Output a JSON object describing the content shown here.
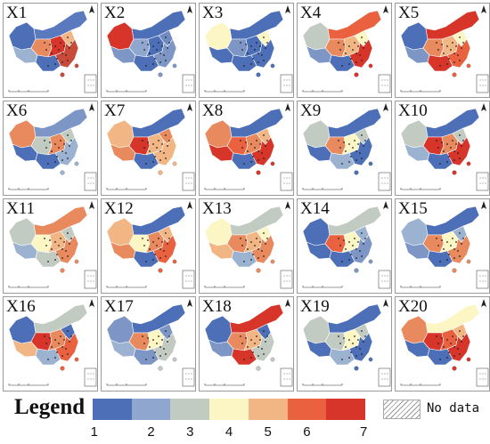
{
  "panels": [
    {
      "label": "X1",
      "colors": [
        "#4c6fb8",
        "#9bb2d1",
        "#5a79be",
        "#e88a5e",
        "#d8352a",
        "#f2b685",
        "#c74a3a",
        "#4c6fb8"
      ]
    },
    {
      "label": "X2",
      "colors": [
        "#d8352a",
        "#7d96c6",
        "#4c6fb8",
        "#8fa7cf",
        "#4c6fb8",
        "#6f8bc2",
        "#7d96c6",
        "#4c6fb8"
      ]
    },
    {
      "label": "X3",
      "colors": [
        "#fbf6c4",
        "#4c6fb8",
        "#4c6fb8",
        "#7d96c6",
        "#4c6fb8",
        "#fbf6c4",
        "#4c6fb8",
        "#4c6fb8"
      ]
    },
    {
      "label": "X4",
      "colors": [
        "#c2cbc2",
        "#7d96c6",
        "#e9613f",
        "#e88a5e",
        "#f2b685",
        "#fbf6c4",
        "#d8352a",
        "#4c6fb8"
      ]
    },
    {
      "label": "X5",
      "colors": [
        "#4c6fb8",
        "#7d96c6",
        "#d8352a",
        "#e88a5e",
        "#f2b685",
        "#fbf6c4",
        "#e9613f",
        "#d8352a"
      ]
    },
    {
      "label": "X6",
      "colors": [
        "#e88a5e",
        "#4c6fb8",
        "#7d96c6",
        "#c2cbc2",
        "#e88a5e",
        "#c2cbc2",
        "#9bb2d1",
        "#4c6fb8"
      ]
    },
    {
      "label": "X7",
      "colors": [
        "#f2b685",
        "#e88a5e",
        "#4c6fb8",
        "#d8352a",
        "#f2b685",
        "#e88a5e",
        "#f2b685",
        "#4c6fb8"
      ]
    },
    {
      "label": "X8",
      "colors": [
        "#e88a5e",
        "#d8352a",
        "#4c6fb8",
        "#e9613f",
        "#e88a5e",
        "#f2b685",
        "#d8352a",
        "#4c6fb8"
      ]
    },
    {
      "label": "X9",
      "colors": [
        "#c2cbc2",
        "#4c6fb8",
        "#4c6fb8",
        "#e88a5e",
        "#fbf6c4",
        "#c2cbc2",
        "#4c6fb8",
        "#9bb2d1"
      ]
    },
    {
      "label": "X10",
      "colors": [
        "#c2cbc2",
        "#9bb2d1",
        "#4c6fb8",
        "#d8352a",
        "#e88a5e",
        "#c2cbc2",
        "#d8352a",
        "#4c6fb8"
      ]
    },
    {
      "label": "X11",
      "colors": [
        "#c2cbc2",
        "#9bb2d1",
        "#e88a5e",
        "#fbf6c4",
        "#f2b685",
        "#c2cbc2",
        "#e88a5e",
        "#c2cbc2"
      ]
    },
    {
      "label": "X12",
      "colors": [
        "#f2b685",
        "#e88a5e",
        "#4c6fb8",
        "#fbf6c4",
        "#e88a5e",
        "#f2b685",
        "#e9613f",
        "#4c6fb8"
      ]
    },
    {
      "label": "X13",
      "colors": [
        "#fbf6c4",
        "#f2b685",
        "#c2cbc2",
        "#e88a5e",
        "#f2b685",
        "#fbf6c4",
        "#e88a5e",
        "#9bb2d1"
      ]
    },
    {
      "label": "X14",
      "colors": [
        "#4c6fb8",
        "#4c6fb8",
        "#c2cbc2",
        "#e9613f",
        "#fbf6c4",
        "#9bb2d1",
        "#7d96c6",
        "#4c6fb8"
      ]
    },
    {
      "label": "X15",
      "colors": [
        "#9bb2d1",
        "#7d96c6",
        "#4c6fb8",
        "#e88a5e",
        "#fbf6c4",
        "#9bb2d1",
        "#e88a5e",
        "#4c6fb8"
      ]
    },
    {
      "label": "X16",
      "colors": [
        "#4c6fb8",
        "#f2b685",
        "#c2cbc2",
        "#d8352a",
        "#e88a5e",
        "#4c6fb8",
        "#e9613f",
        "#9bb2d1"
      ]
    },
    {
      "label": "X17",
      "colors": [
        "#7d96c6",
        "#9bb2d1",
        "#4c6fb8",
        "#e88a5e",
        "#fbf6c4",
        "#7d96c6",
        "#c2cbc2",
        "#7d96c6"
      ]
    },
    {
      "label": "X18",
      "colors": [
        "#4c6fb8",
        "#7d96c6",
        "#d8352a",
        "#e88a5e",
        "#f2b685",
        "#4c6fb8",
        "#c2cbc2",
        "#d8352a"
      ]
    },
    {
      "label": "X19",
      "colors": [
        "#c2cbc2",
        "#4c6fb8",
        "#4c6fb8",
        "#c2cbc2",
        "#fbf6c4",
        "#c2cbc2",
        "#4c6fb8",
        "#9bb2d1"
      ]
    },
    {
      "label": "X20",
      "colors": [
        "#e88a5e",
        "#4c6fb8",
        "#fbf6c4",
        "#d8352a",
        "#e9613f",
        "#f2b685",
        "#d8352a",
        "#4c6fb8"
      ]
    }
  ],
  "legend": {
    "title": "Legend",
    "classes": [
      "1",
      "2",
      "3",
      "4",
      "5",
      "6",
      "7"
    ],
    "class_colors": [
      "#4c6fb8",
      "#8fa7cf",
      "#c2cbc2",
      "#fbf6c4",
      "#f2b685",
      "#e9613f",
      "#d8352a"
    ],
    "nodata_label": "No data"
  }
}
